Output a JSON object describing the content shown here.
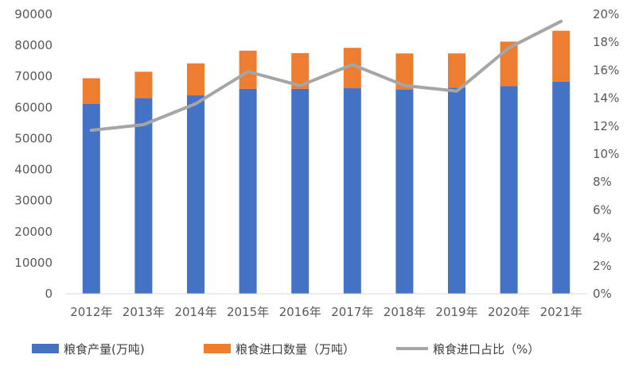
{
  "chart_data": {
    "type": "bar",
    "stacked": true,
    "categories": [
      "2012年",
      "2013年",
      "2014年",
      "2015年",
      "2016年",
      "2017年",
      "2018年",
      "2019年",
      "2020年",
      "2021年"
    ],
    "series": [
      {
        "name": "粮食产量(万吨)",
        "type": "bar",
        "axis": "left",
        "color": "#4472C4",
        "values": [
          61200,
          63000,
          63900,
          66000,
          66000,
          66200,
          65800,
          66400,
          66900,
          68300
        ]
      },
      {
        "name": "粮食进口数量（万吨）",
        "type": "bar",
        "axis": "left",
        "color": "#ED7D31",
        "values": [
          8200,
          8500,
          10300,
          12300,
          11500,
          13000,
          11600,
          11000,
          14300,
          16400
        ]
      },
      {
        "name": "粮食进口占比（%）",
        "type": "line",
        "axis": "right",
        "color": "#A5A5A5",
        "values": [
          11.7,
          12.1,
          13.6,
          15.9,
          14.9,
          16.4,
          14.9,
          14.5,
          17.6,
          19.5
        ]
      }
    ],
    "y_left": {
      "min": 0,
      "max": 90000,
      "step": 10000,
      "tick_labels": [
        "0",
        "10000",
        "20000",
        "30000",
        "40000",
        "50000",
        "60000",
        "70000",
        "80000",
        "90000"
      ]
    },
    "y_right": {
      "min": 0,
      "max": 20,
      "step": 2,
      "tick_labels": [
        "0%",
        "2%",
        "4%",
        "6%",
        "8%",
        "10%",
        "12%",
        "14%",
        "16%",
        "18%",
        "20%"
      ]
    },
    "grid": false,
    "legend_position": "bottom"
  }
}
